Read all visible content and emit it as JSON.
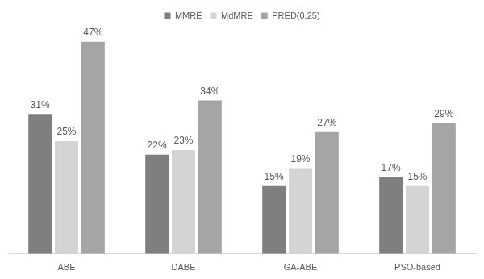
{
  "chart_data": {
    "type": "bar",
    "categories": [
      "ABE",
      "DABE",
      "GA-ABE",
      "PSO-based"
    ],
    "series": [
      {
        "name": "MMRE",
        "color": "#7f7f7f",
        "values": [
          31,
          22,
          15,
          17
        ],
        "value_labels": [
          "31%",
          "22%",
          "15%",
          "17%"
        ]
      },
      {
        "name": "MdMRE",
        "color": "#d4d4d4",
        "values": [
          25,
          23,
          19,
          15
        ],
        "value_labels": [
          "25%",
          "23%",
          "19%",
          "15%"
        ]
      },
      {
        "name": "PRED(0.25)",
        "color": "#a5a5a5",
        "values": [
          47,
          34,
          27,
          29
        ],
        "value_labels": [
          "47%",
          "34%",
          "27%",
          "29%"
        ]
      }
    ],
    "legend": "top",
    "grid": false,
    "data_labels": true,
    "tick_labels": "x"
  }
}
